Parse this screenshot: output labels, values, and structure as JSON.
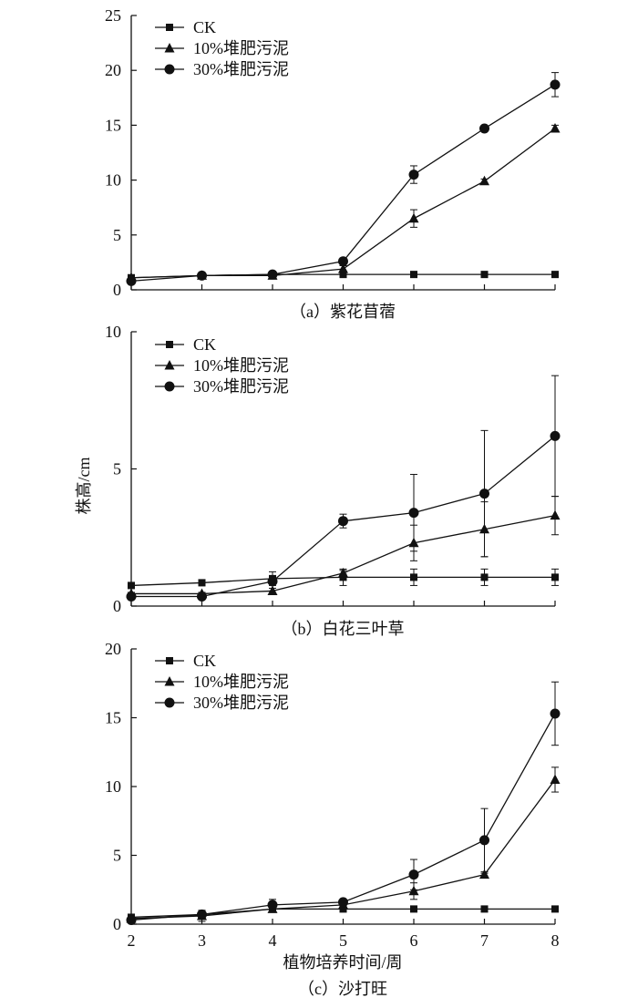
{
  "figure": {
    "ylabel": "株高/cm",
    "xlabel": "植物培养时间/周"
  },
  "chart_data": [
    {
      "type": "line",
      "title": "（a）紫花苜蓿",
      "xlabel": "植物培养时间/周",
      "ylabel": "株高/cm",
      "x": [
        2,
        3,
        4,
        5,
        6,
        7,
        8
      ],
      "xlim": [
        2,
        8
      ],
      "ylim": [
        0,
        25
      ],
      "yticks": [
        0,
        5,
        10,
        15,
        20,
        25
      ],
      "legend_position": "top-left",
      "series": [
        {
          "name": "CK",
          "marker": "square",
          "values": [
            1.1,
            1.3,
            1.4,
            1.4,
            1.4,
            1.4,
            1.4
          ],
          "errors": [
            0.1,
            0.1,
            0.1,
            0.1,
            0.1,
            0.1,
            0.1
          ]
        },
        {
          "name": "10%堆肥污泥",
          "marker": "triangle",
          "values": [
            1.1,
            1.3,
            1.3,
            1.9,
            6.5,
            9.9,
            14.7
          ],
          "errors": [
            0.1,
            0.1,
            0.2,
            0.3,
            0.8,
            0.2,
            0.3
          ]
        },
        {
          "name": "30%堆肥污泥",
          "marker": "circle",
          "values": [
            0.8,
            1.3,
            1.4,
            2.6,
            10.5,
            14.7,
            18.7
          ],
          "errors": [
            0.1,
            0.1,
            0.2,
            0.2,
            0.8,
            0.1,
            1.1
          ]
        }
      ]
    },
    {
      "type": "line",
      "title": "（b）白花三叶草",
      "xlabel": "植物培养时间/周",
      "ylabel": "株高/cm",
      "x": [
        2,
        3,
        4,
        5,
        6,
        7,
        8
      ],
      "xlim": [
        2,
        8
      ],
      "ylim": [
        0,
        10
      ],
      "yticks": [
        0,
        5,
        10
      ],
      "legend_position": "top-left",
      "series": [
        {
          "name": "CK",
          "marker": "square",
          "values": [
            0.75,
            0.85,
            1.0,
            1.05,
            1.05,
            1.05,
            1.05
          ],
          "errors": [
            0.05,
            0.05,
            0.25,
            0.3,
            0.3,
            0.3,
            0.3
          ]
        },
        {
          "name": "10%堆肥污泥",
          "marker": "triangle",
          "values": [
            0.45,
            0.45,
            0.55,
            1.2,
            2.3,
            2.8,
            3.3
          ],
          "errors": [
            0.05,
            0.05,
            0.1,
            0.1,
            0.65,
            1.0,
            0.7
          ]
        },
        {
          "name": "30%堆肥污泥",
          "marker": "circle",
          "values": [
            0.35,
            0.35,
            0.9,
            3.1,
            3.4,
            4.1,
            6.2
          ],
          "errors": [
            0.05,
            0.05,
            0.1,
            0.25,
            1.4,
            2.3,
            2.2
          ]
        }
      ]
    },
    {
      "type": "line",
      "title": "（c）沙打旺",
      "xlabel": "植物培养时间/周",
      "ylabel": "株高/cm",
      "x": [
        2,
        3,
        4,
        5,
        6,
        7,
        8
      ],
      "xlim": [
        2,
        8
      ],
      "ylim": [
        0,
        20
      ],
      "yticks": [
        0,
        5,
        10,
        15,
        20
      ],
      "xticks": [
        2,
        3,
        4,
        5,
        6,
        7,
        8
      ],
      "legend_position": "top-left",
      "series": [
        {
          "name": "CK",
          "marker": "square",
          "values": [
            0.5,
            0.7,
            1.1,
            1.1,
            1.1,
            1.1,
            1.1
          ],
          "errors": [
            0.1,
            0.3,
            0.2,
            0.1,
            0.1,
            0.1,
            0.1
          ]
        },
        {
          "name": "10%堆肥污泥",
          "marker": "triangle",
          "values": [
            0.4,
            0.6,
            1.1,
            1.4,
            2.4,
            3.6,
            10.5
          ],
          "errors": [
            0.1,
            0.4,
            0.2,
            0.2,
            0.6,
            0.1,
            0.9
          ]
        },
        {
          "name": "30%堆肥污泥",
          "marker": "circle",
          "values": [
            0.3,
            0.7,
            1.4,
            1.6,
            3.6,
            6.1,
            15.3
          ],
          "errors": [
            0.1,
            0.3,
            0.4,
            0.2,
            1.1,
            2.3,
            2.3
          ]
        }
      ]
    }
  ]
}
